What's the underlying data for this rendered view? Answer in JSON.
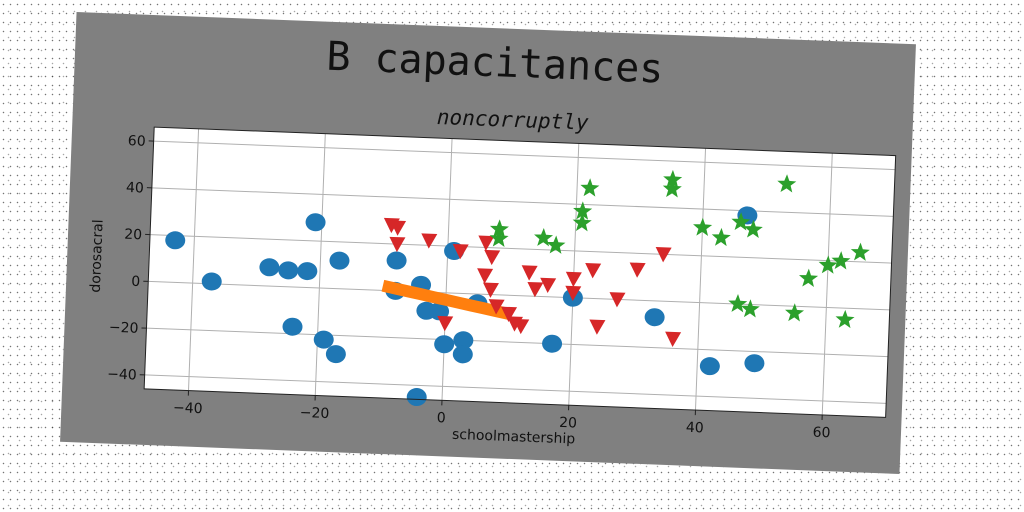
{
  "chart_data": {
    "type": "scatter",
    "title": "B capacitances",
    "subtitle": "noncorruptly",
    "xlabel": "schoolmastership",
    "ylabel": "dorosacral",
    "xlim": [
      -47,
      70
    ],
    "ylim": [
      -46,
      66
    ],
    "xticks": [
      -40,
      -20,
      0,
      20,
      40,
      60
    ],
    "yticks": [
      -40,
      -20,
      0,
      20,
      40,
      60
    ],
    "grid": true,
    "colors": {
      "figure_bg": "#808080",
      "plot_bg": "#ffffff",
      "grid": "#b0b0b0",
      "blue": "#1f77b4",
      "orange": "#ff7f0e",
      "green": "#2ca02c",
      "red": "#d62728"
    },
    "series": [
      {
        "marker": "circle",
        "color": "#1f77b4",
        "points": [
          [
            -43,
            18
          ],
          [
            -37,
            1
          ],
          [
            -28,
            8
          ],
          [
            -25,
            7
          ],
          [
            -24,
            -17
          ],
          [
            -22,
            7
          ],
          [
            -21,
            28
          ],
          [
            -17,
            12
          ],
          [
            -19,
            -22
          ],
          [
            -17,
            -28
          ],
          [
            -8,
            13
          ],
          [
            -8,
            0
          ],
          [
            -4,
            3
          ],
          [
            -3,
            -8
          ],
          [
            -1,
            -8
          ],
          [
            1,
            18
          ],
          [
            0,
            -22
          ],
          [
            3,
            -20
          ],
          [
            3,
            -26
          ],
          [
            5,
            -4
          ],
          [
            -4,
            -45
          ],
          [
            20,
            0
          ],
          [
            17,
            -20
          ],
          [
            33,
            -7
          ],
          [
            42,
            -27
          ],
          [
            49,
            -25
          ],
          [
            47,
            38
          ]
        ]
      },
      {
        "marker": "line",
        "color": "#ff7f0e",
        "points": [
          [
            -10,
            2
          ],
          [
            -8,
            1
          ],
          [
            -6,
            0
          ],
          [
            -4,
            -1
          ],
          [
            -2,
            -2
          ],
          [
            0,
            -3
          ],
          [
            2,
            -4
          ],
          [
            4,
            -5
          ],
          [
            6,
            -6
          ],
          [
            8,
            -7
          ],
          [
            10,
            -8
          ]
        ]
      },
      {
        "marker": "triangle-down",
        "color": "#d62728",
        "points": [
          [
            -9,
            28
          ],
          [
            -8,
            27
          ],
          [
            -8,
            20
          ],
          [
            -3,
            22
          ],
          [
            2,
            18
          ],
          [
            7,
            16
          ],
          [
            6,
            22
          ],
          [
            6,
            8
          ],
          [
            7,
            2
          ],
          [
            8,
            -5
          ],
          [
            10,
            -8
          ],
          [
            11,
            -12
          ],
          [
            12,
            -13
          ],
          [
            13,
            10
          ],
          [
            14,
            3
          ],
          [
            16,
            5
          ],
          [
            20,
            8
          ],
          [
            20,
            2
          ],
          [
            23,
            12
          ],
          [
            24,
            -12
          ],
          [
            27,
            0
          ],
          [
            30,
            13
          ],
          [
            34,
            20
          ],
          [
            36,
            -16
          ],
          [
            0,
            -13
          ]
        ]
      },
      {
        "marker": "star",
        "color": "#2ca02c",
        "points": [
          [
            8,
            28
          ],
          [
            8,
            24
          ],
          [
            15,
            25
          ],
          [
            17,
            22
          ],
          [
            21,
            37
          ],
          [
            21,
            32
          ],
          [
            22,
            47
          ],
          [
            35,
            52
          ],
          [
            35,
            48
          ],
          [
            40,
            32
          ],
          [
            43,
            28
          ],
          [
            46,
            35
          ],
          [
            48,
            32
          ],
          [
            53,
            52
          ],
          [
            57,
            12
          ],
          [
            60,
            18
          ],
          [
            62,
            20
          ],
          [
            65,
            24
          ],
          [
            46,
            0
          ],
          [
            48,
            -2
          ],
          [
            55,
            -3
          ],
          [
            63,
            -5
          ]
        ]
      }
    ]
  }
}
